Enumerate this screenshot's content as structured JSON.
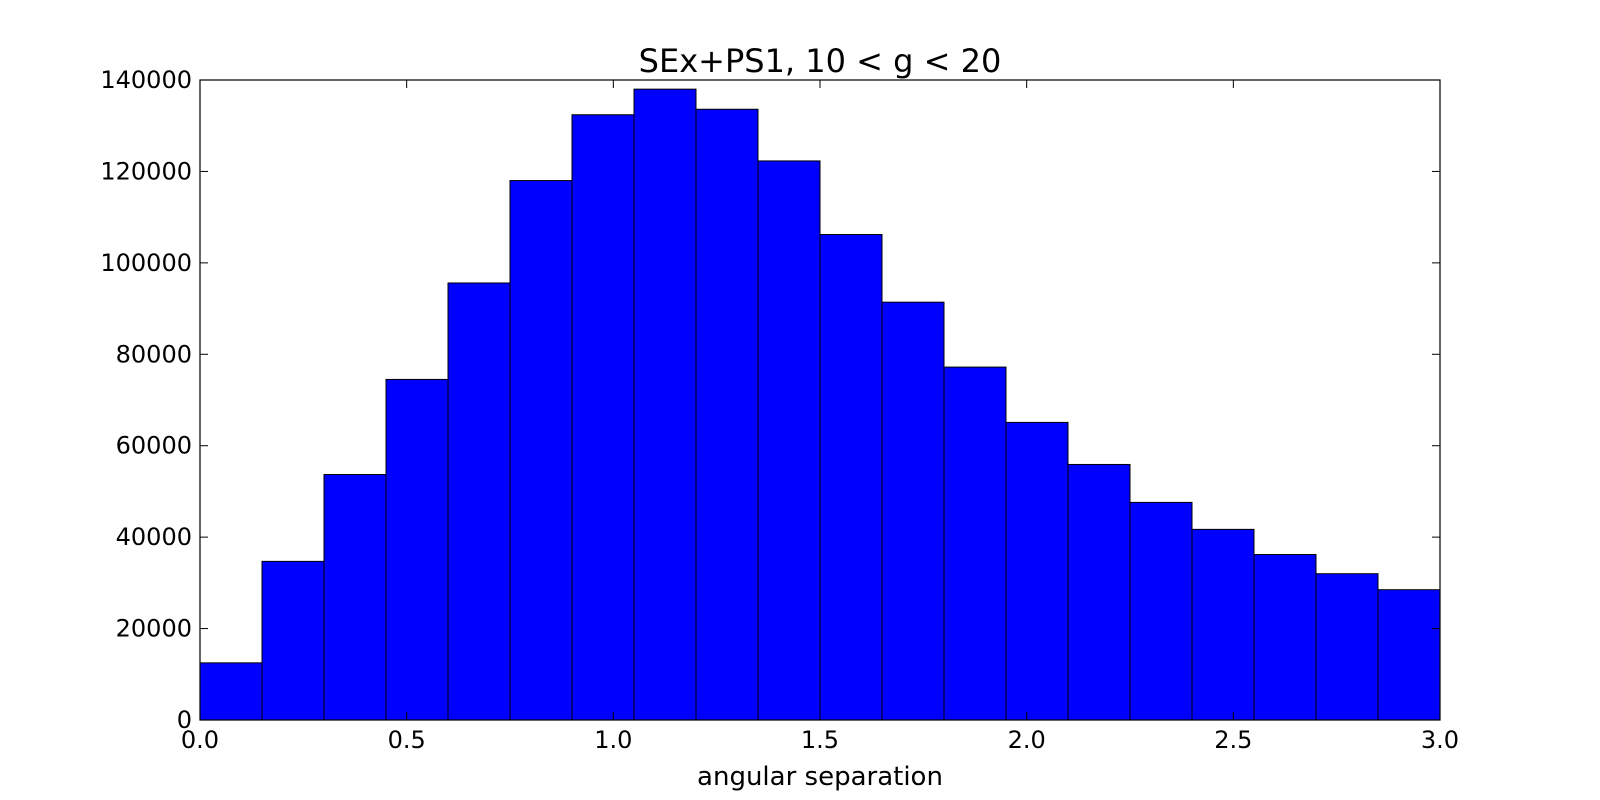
{
  "chart_data": {
    "type": "bar",
    "title": "SEx+PS1, 10 < g < 20",
    "xlabel": "angular separation",
    "ylabel": "",
    "bin_edges": [
      0.0,
      0.15,
      0.3,
      0.45,
      0.6,
      0.75,
      0.9,
      1.05,
      1.2,
      1.35,
      1.5,
      1.65,
      1.8,
      1.95,
      2.1,
      2.25,
      2.4,
      2.55,
      2.7,
      2.85,
      3.0
    ],
    "values": [
      12500,
      34700,
      53700,
      74500,
      95600,
      118000,
      132400,
      138000,
      133600,
      122300,
      106200,
      91400,
      77200,
      65100,
      55900,
      47600,
      41700,
      36200,
      32000,
      28500
    ],
    "xlim": [
      0.0,
      3.0
    ],
    "ylim": [
      0,
      140000
    ],
    "xticks": [
      0.0,
      0.5,
      1.0,
      1.5,
      2.0,
      2.5,
      3.0
    ],
    "xtick_labels": [
      "0.0",
      "0.5",
      "1.0",
      "1.5",
      "2.0",
      "2.5",
      "3.0"
    ],
    "yticks": [
      0,
      20000,
      40000,
      60000,
      80000,
      100000,
      120000,
      140000
    ],
    "ytick_labels": [
      "0",
      "20000",
      "40000",
      "60000",
      "80000",
      "100000",
      "120000",
      "140000"
    ],
    "bar_color": "#0000ff",
    "grid": false
  }
}
